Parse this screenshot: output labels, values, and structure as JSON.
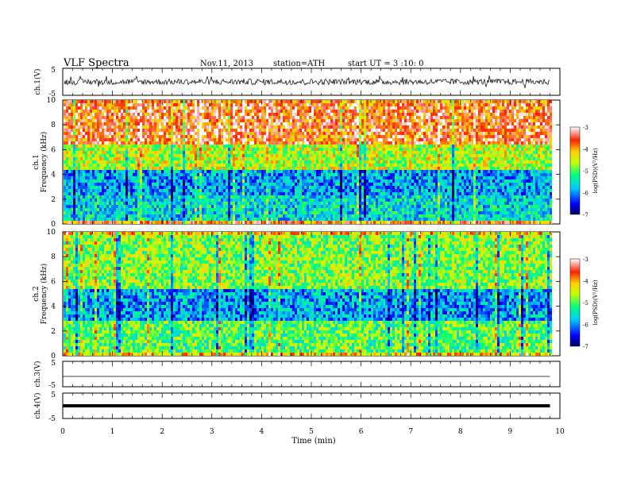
{
  "header": {
    "title": "VLF  Spectra",
    "date": "Nov.11, 2013",
    "station": "station=ATH",
    "start": "start  UT  =   3  :10: 0"
  },
  "chart_data": [
    {
      "type": "line",
      "name": "ch1-waveform",
      "ylabel": "ch.1(V)",
      "ylim": [
        -5,
        5
      ],
      "yticks": [
        "5",
        "-5"
      ],
      "description_of_signal": "noisy waveform oscillating around 0 V with amplitude about 1-4 V"
    },
    {
      "type": "heatmap",
      "name": "ch1-spectrogram",
      "ylabel_1": "ch.1",
      "ylabel_2": "Frequency  (kHz)",
      "ylim": [
        0,
        10
      ],
      "yticks": [
        "0",
        "2",
        "4",
        "6",
        "8",
        "10"
      ],
      "colorbar": {
        "label": "log(PSD)(V²/Hz)",
        "range": [
          -7,
          -3
        ],
        "ticks": [
          "-3",
          "-4",
          "-5",
          "-6",
          "-7"
        ]
      },
      "bands": [
        {
          "from_khz": 6.5,
          "to_khz": 10,
          "level": -3.6
        },
        {
          "from_khz": 4.5,
          "to_khz": 6.5,
          "level": -4.6
        },
        {
          "from_khz": 2.5,
          "to_khz": 4.5,
          "level": -5.9
        },
        {
          "from_khz": 0.5,
          "to_khz": 2.5,
          "level": -5.6
        },
        {
          "from_khz": 0,
          "to_khz": 0.5,
          "level": -3.8
        }
      ]
    },
    {
      "type": "heatmap",
      "name": "ch2-spectrogram",
      "ylabel_1": "ch.2",
      "ylabel_2": "Frequency  (kHz)",
      "ylim": [
        0,
        10
      ],
      "yticks": [
        "0",
        "2",
        "4",
        "6",
        "8",
        "10"
      ],
      "colorbar": {
        "label": "log(PSD)(V²/Hz)",
        "range": [
          -7,
          -3
        ],
        "ticks": [
          "-3",
          "-4",
          "-5",
          "-6",
          "-7"
        ]
      },
      "bands": [
        {
          "from_khz": 5.5,
          "to_khz": 10,
          "level": -4.8
        },
        {
          "from_khz": 3,
          "to_khz": 5.5,
          "level": -5.9
        },
        {
          "from_khz": 0.5,
          "to_khz": 3,
          "level": -5.0
        },
        {
          "from_khz": 0,
          "to_khz": 0.5,
          "level": -4.2
        }
      ]
    },
    {
      "type": "line",
      "name": "ch3-waveform",
      "ylabel": "ch.3(V)",
      "ylim": [
        -5,
        5
      ],
      "yticks": [
        "5",
        "-5"
      ],
      "x": [
        0,
        9.8
      ],
      "y": [
        0,
        0
      ]
    },
    {
      "type": "line",
      "name": "ch4-waveform",
      "ylabel": "ch.4(V)",
      "ylim": [
        -5,
        5
      ],
      "yticks": [
        "5",
        "-5"
      ],
      "x": [
        0,
        9.8
      ],
      "y": [
        0,
        0
      ]
    }
  ],
  "xaxis": {
    "label": "Time  (min)",
    "xlim": [
      0,
      10
    ],
    "ticks": [
      "0",
      "1",
      "2",
      "3",
      "4",
      "5",
      "6",
      "7",
      "8",
      "9",
      "10"
    ],
    "data_end_min": 9.8
  }
}
